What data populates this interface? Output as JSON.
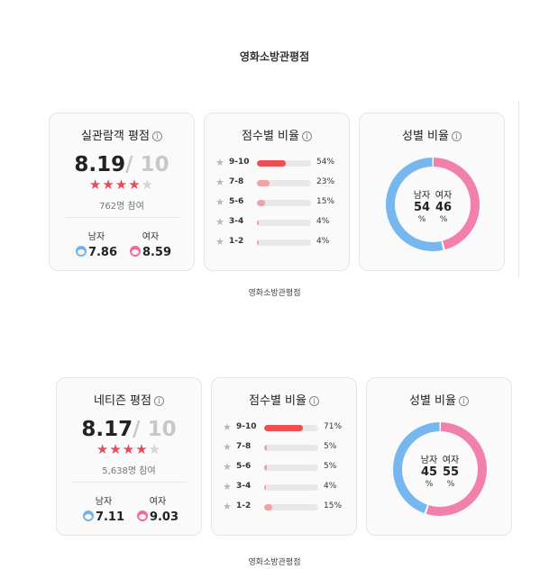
{
  "sections": [
    {
      "heading": "영화소방관평점",
      "caption": "영화소방관평점",
      "rating": {
        "title": "실관람객 평점",
        "score": "8.19",
        "max": "/ 10",
        "stars_value": 4.1,
        "participants": "762명 참여",
        "male_label": "남자",
        "male_score": "7.86",
        "female_label": "여자",
        "female_score": "8.59"
      },
      "distribution": {
        "title": "점수별 비율",
        "rows": [
          {
            "label": "9-10",
            "percent": 54,
            "percent_text": "54%"
          },
          {
            "label": "7-8",
            "percent": 23,
            "percent_text": "23%"
          },
          {
            "label": "5-6",
            "percent": 15,
            "percent_text": "15%"
          },
          {
            "label": "3-4",
            "percent": 4,
            "percent_text": "4%"
          },
          {
            "label": "1-2",
            "percent": 4,
            "percent_text": "4%"
          }
        ]
      },
      "gender": {
        "title": "성별 비율",
        "male_label": "남자",
        "female_label": "여자",
        "male_percent": 54,
        "female_percent": 46,
        "percent_sign": "%"
      }
    },
    {
      "heading": "",
      "caption": "영화소방관평점",
      "rating": {
        "title": "네티즌 평점",
        "score": "8.17",
        "max": "/ 10",
        "stars_value": 4.1,
        "participants": "5,638명 참여",
        "male_label": "남자",
        "male_score": "7.11",
        "female_label": "여자",
        "female_score": "9.03"
      },
      "distribution": {
        "title": "점수별 비율",
        "rows": [
          {
            "label": "9-10",
            "percent": 71,
            "percent_text": "71%"
          },
          {
            "label": "7-8",
            "percent": 5,
            "percent_text": "5%"
          },
          {
            "label": "5-6",
            "percent": 5,
            "percent_text": "5%"
          },
          {
            "label": "3-4",
            "percent": 4,
            "percent_text": "4%"
          },
          {
            "label": "1-2",
            "percent": 15,
            "percent_text": "15%"
          }
        ]
      },
      "gender": {
        "title": "성별 비율",
        "male_label": "남자",
        "female_label": "여자",
        "male_percent": 45,
        "female_percent": 55,
        "percent_sign": "%"
      }
    }
  ],
  "colors": {
    "star_on": "#e84c58",
    "star_off": "#d6d6d6",
    "bar_top": "#ef4f52",
    "bar_mid": "#f4a1a2",
    "bar_low": "#f0a2a2",
    "male": "#76b7f0",
    "female": "#f280ad"
  },
  "icons": {
    "info": "info-icon",
    "star": "star-icon",
    "male_face": "male-face-icon",
    "female_face": "female-face-icon"
  }
}
